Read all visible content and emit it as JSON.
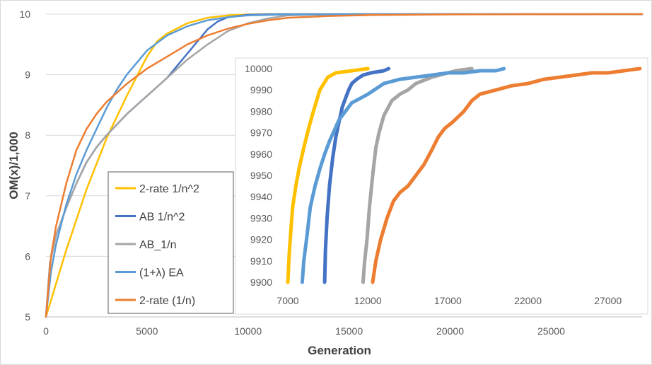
{
  "colors": {
    "2-rate 1/n^2": "#ffc000",
    "AB 1/n^2": "#4472c4",
    "AB_1/n": "#a5a5a5",
    "(1+λ) EA": "#5b9bd5",
    "2-rate (1/n)": "#ed7d31"
  },
  "chart_data": [
    {
      "type": "line",
      "xlabel": "Generation",
      "ylabel": "OM(x)/1,000",
      "xlim": [
        0,
        29500
      ],
      "ylim": [
        5,
        10
      ],
      "xticks": [
        "0",
        "5000",
        "10000",
        "15000",
        "20000",
        "25000"
      ],
      "xtick_values": [
        0,
        5000,
        10000,
        15000,
        20000,
        25000
      ],
      "yticks": [
        "5",
        "6",
        "7",
        "8",
        "9",
        "10"
      ],
      "ytick_values": [
        5,
        6,
        7,
        8,
        9,
        10
      ],
      "grid": "horizontal",
      "legend_position": "lower-left",
      "series": [
        {
          "name": "2-rate 1/n^2",
          "x": [
            0,
            1000,
            2000,
            3000,
            4000,
            5000,
            5500,
            6000,
            7000,
            8000,
            9000,
            10000,
            11000,
            29500
          ],
          "y": [
            5,
            6.1,
            7.1,
            7.95,
            8.65,
            9.3,
            9.55,
            9.68,
            9.85,
            9.94,
            9.98,
            9.995,
            10,
            10
          ]
        },
        {
          "name": "AB 1/n^2",
          "x": [
            0,
            200,
            500,
            1000,
            1500,
            2000,
            2500,
            3000,
            4000,
            5000,
            6000,
            6500,
            7000,
            7500,
            8000,
            8500,
            9000,
            10000,
            11000,
            12000,
            29500
          ],
          "y": [
            5,
            5.9,
            6.35,
            6.8,
            7.2,
            7.55,
            7.8,
            8.0,
            8.35,
            8.65,
            8.95,
            9.15,
            9.35,
            9.55,
            9.75,
            9.88,
            9.95,
            9.99,
            9.998,
            10,
            10
          ]
        },
        {
          "name": "AB_1/n",
          "x": [
            0,
            200,
            500,
            1000,
            1500,
            2000,
            2500,
            3000,
            4000,
            5000,
            6000,
            7000,
            8000,
            9000,
            10000,
            11000,
            12000,
            13000,
            16000,
            29500
          ],
          "y": [
            5,
            5.9,
            6.35,
            6.8,
            7.2,
            7.55,
            7.8,
            8.0,
            8.35,
            8.65,
            8.95,
            9.25,
            9.5,
            9.72,
            9.85,
            9.93,
            9.98,
            9.99,
            10,
            10
          ]
        },
        {
          "name": "(1+λ) EA",
          "x": [
            0,
            250,
            500,
            1000,
            1500,
            2000,
            2500,
            3000,
            3500,
            4000,
            5000,
            6000,
            7000,
            8000,
            9000,
            10000,
            12000,
            14000,
            17000,
            20000,
            29500
          ],
          "y": [
            5,
            5.75,
            6.2,
            6.85,
            7.35,
            7.75,
            8.1,
            8.45,
            8.75,
            9.0,
            9.4,
            9.65,
            9.8,
            9.9,
            9.95,
            9.98,
            9.995,
            9.998,
            10,
            10,
            10
          ]
        },
        {
          "name": "2-rate (1/n)",
          "x": [
            0,
            250,
            500,
            1000,
            1500,
            2000,
            2500,
            3000,
            4000,
            5000,
            6000,
            7000,
            8000,
            9000,
            10000,
            11000,
            12000,
            14000,
            16000,
            20000,
            25000,
            29500
          ],
          "y": [
            5,
            6.0,
            6.5,
            7.2,
            7.75,
            8.1,
            8.35,
            8.55,
            8.85,
            9.1,
            9.3,
            9.5,
            9.65,
            9.76,
            9.84,
            9.9,
            9.94,
            9.97,
            9.985,
            9.995,
            9.999,
            10
          ]
        }
      ]
    },
    {
      "type": "line",
      "xlabel": "",
      "ylabel": "",
      "xlim": [
        7000,
        29000
      ],
      "ylim": [
        9900,
        10000
      ],
      "xticks": [
        "7000",
        "12000",
        "17000",
        "22000",
        "27000"
      ],
      "xtick_values": [
        7000,
        12000,
        17000,
        22000,
        27000
      ],
      "yticks": [
        "10000",
        "9990",
        "9980",
        "9970",
        "9960",
        "9950",
        "9940",
        "9930",
        "9920",
        "9910",
        "9900"
      ],
      "ytick_values": [
        10000,
        9990,
        9980,
        9970,
        9960,
        9950,
        9940,
        9930,
        9920,
        9910,
        9900
      ],
      "grid": "none",
      "legend_position": "none",
      "series": [
        {
          "name": "2-rate 1/n^2",
          "x": [
            7000,
            7100,
            7200,
            7300,
            7500,
            7700,
            8000,
            8300,
            8600,
            9000,
            9500,
            10000,
            11000,
            12000
          ],
          "y": [
            9900,
            9915,
            9925,
            9935,
            9945,
            9953,
            9963,
            9972,
            9980,
            9990,
            9996,
            9998,
            9999,
            10000
          ]
        },
        {
          "name": "AB 1/n^2",
          "x": [
            9300,
            9350,
            9450,
            9600,
            9800,
            10000,
            10200,
            10400,
            10600,
            10800,
            11000,
            11300,
            11700,
            12200,
            13000,
            13300
          ],
          "y": [
            9900,
            9915,
            9930,
            9945,
            9958,
            9968,
            9975,
            9982,
            9986,
            9990,
            9993,
            9995,
            9997,
            9998,
            9999,
            10000
          ]
        },
        {
          "name": "AB_1/n",
          "x": [
            11700,
            11800,
            11950,
            12100,
            12300,
            12500,
            12700,
            13000,
            13500,
            14000,
            14500,
            15000,
            16000,
            17500,
            18500
          ],
          "y": [
            9900,
            9910,
            9920,
            9935,
            9950,
            9963,
            9970,
            9978,
            9985,
            9988,
            9990,
            9993,
            9996,
            9999,
            10000
          ]
        },
        {
          "name": "(1+λ) EA",
          "x": [
            7900,
            8000,
            8200,
            8400,
            8700,
            9000,
            9300,
            9600,
            9900,
            10200,
            10600,
            11000,
            11500,
            12000,
            13000,
            14000,
            15000,
            16000,
            17000,
            18000,
            19000,
            20000,
            20500
          ],
          "y": [
            9900,
            9910,
            9922,
            9935,
            9945,
            9953,
            9960,
            9966,
            9971,
            9976,
            9980,
            9984,
            9986,
            9988,
            9993,
            9995,
            9996,
            9997,
            9998,
            9998,
            9999,
            9999,
            10000
          ]
        },
        {
          "name": "2-rate (1/n)",
          "x": [
            12300,
            12500,
            12800,
            13200,
            13600,
            14000,
            14500,
            15000,
            15500,
            16000,
            16400,
            16800,
            17300,
            18000,
            18500,
            19000,
            20000,
            21000,
            22000,
            23000,
            24000,
            25000,
            26000,
            27000,
            28000,
            29000
          ],
          "y": [
            9900,
            9910,
            9920,
            9930,
            9938,
            9942,
            9945,
            9950,
            9955,
            9962,
            9968,
            9972,
            9975,
            9980,
            9985,
            9988,
            9990,
            9992,
            9993,
            9995,
            9996,
            9997,
            9998,
            9998,
            9999,
            10000
          ]
        }
      ]
    }
  ]
}
